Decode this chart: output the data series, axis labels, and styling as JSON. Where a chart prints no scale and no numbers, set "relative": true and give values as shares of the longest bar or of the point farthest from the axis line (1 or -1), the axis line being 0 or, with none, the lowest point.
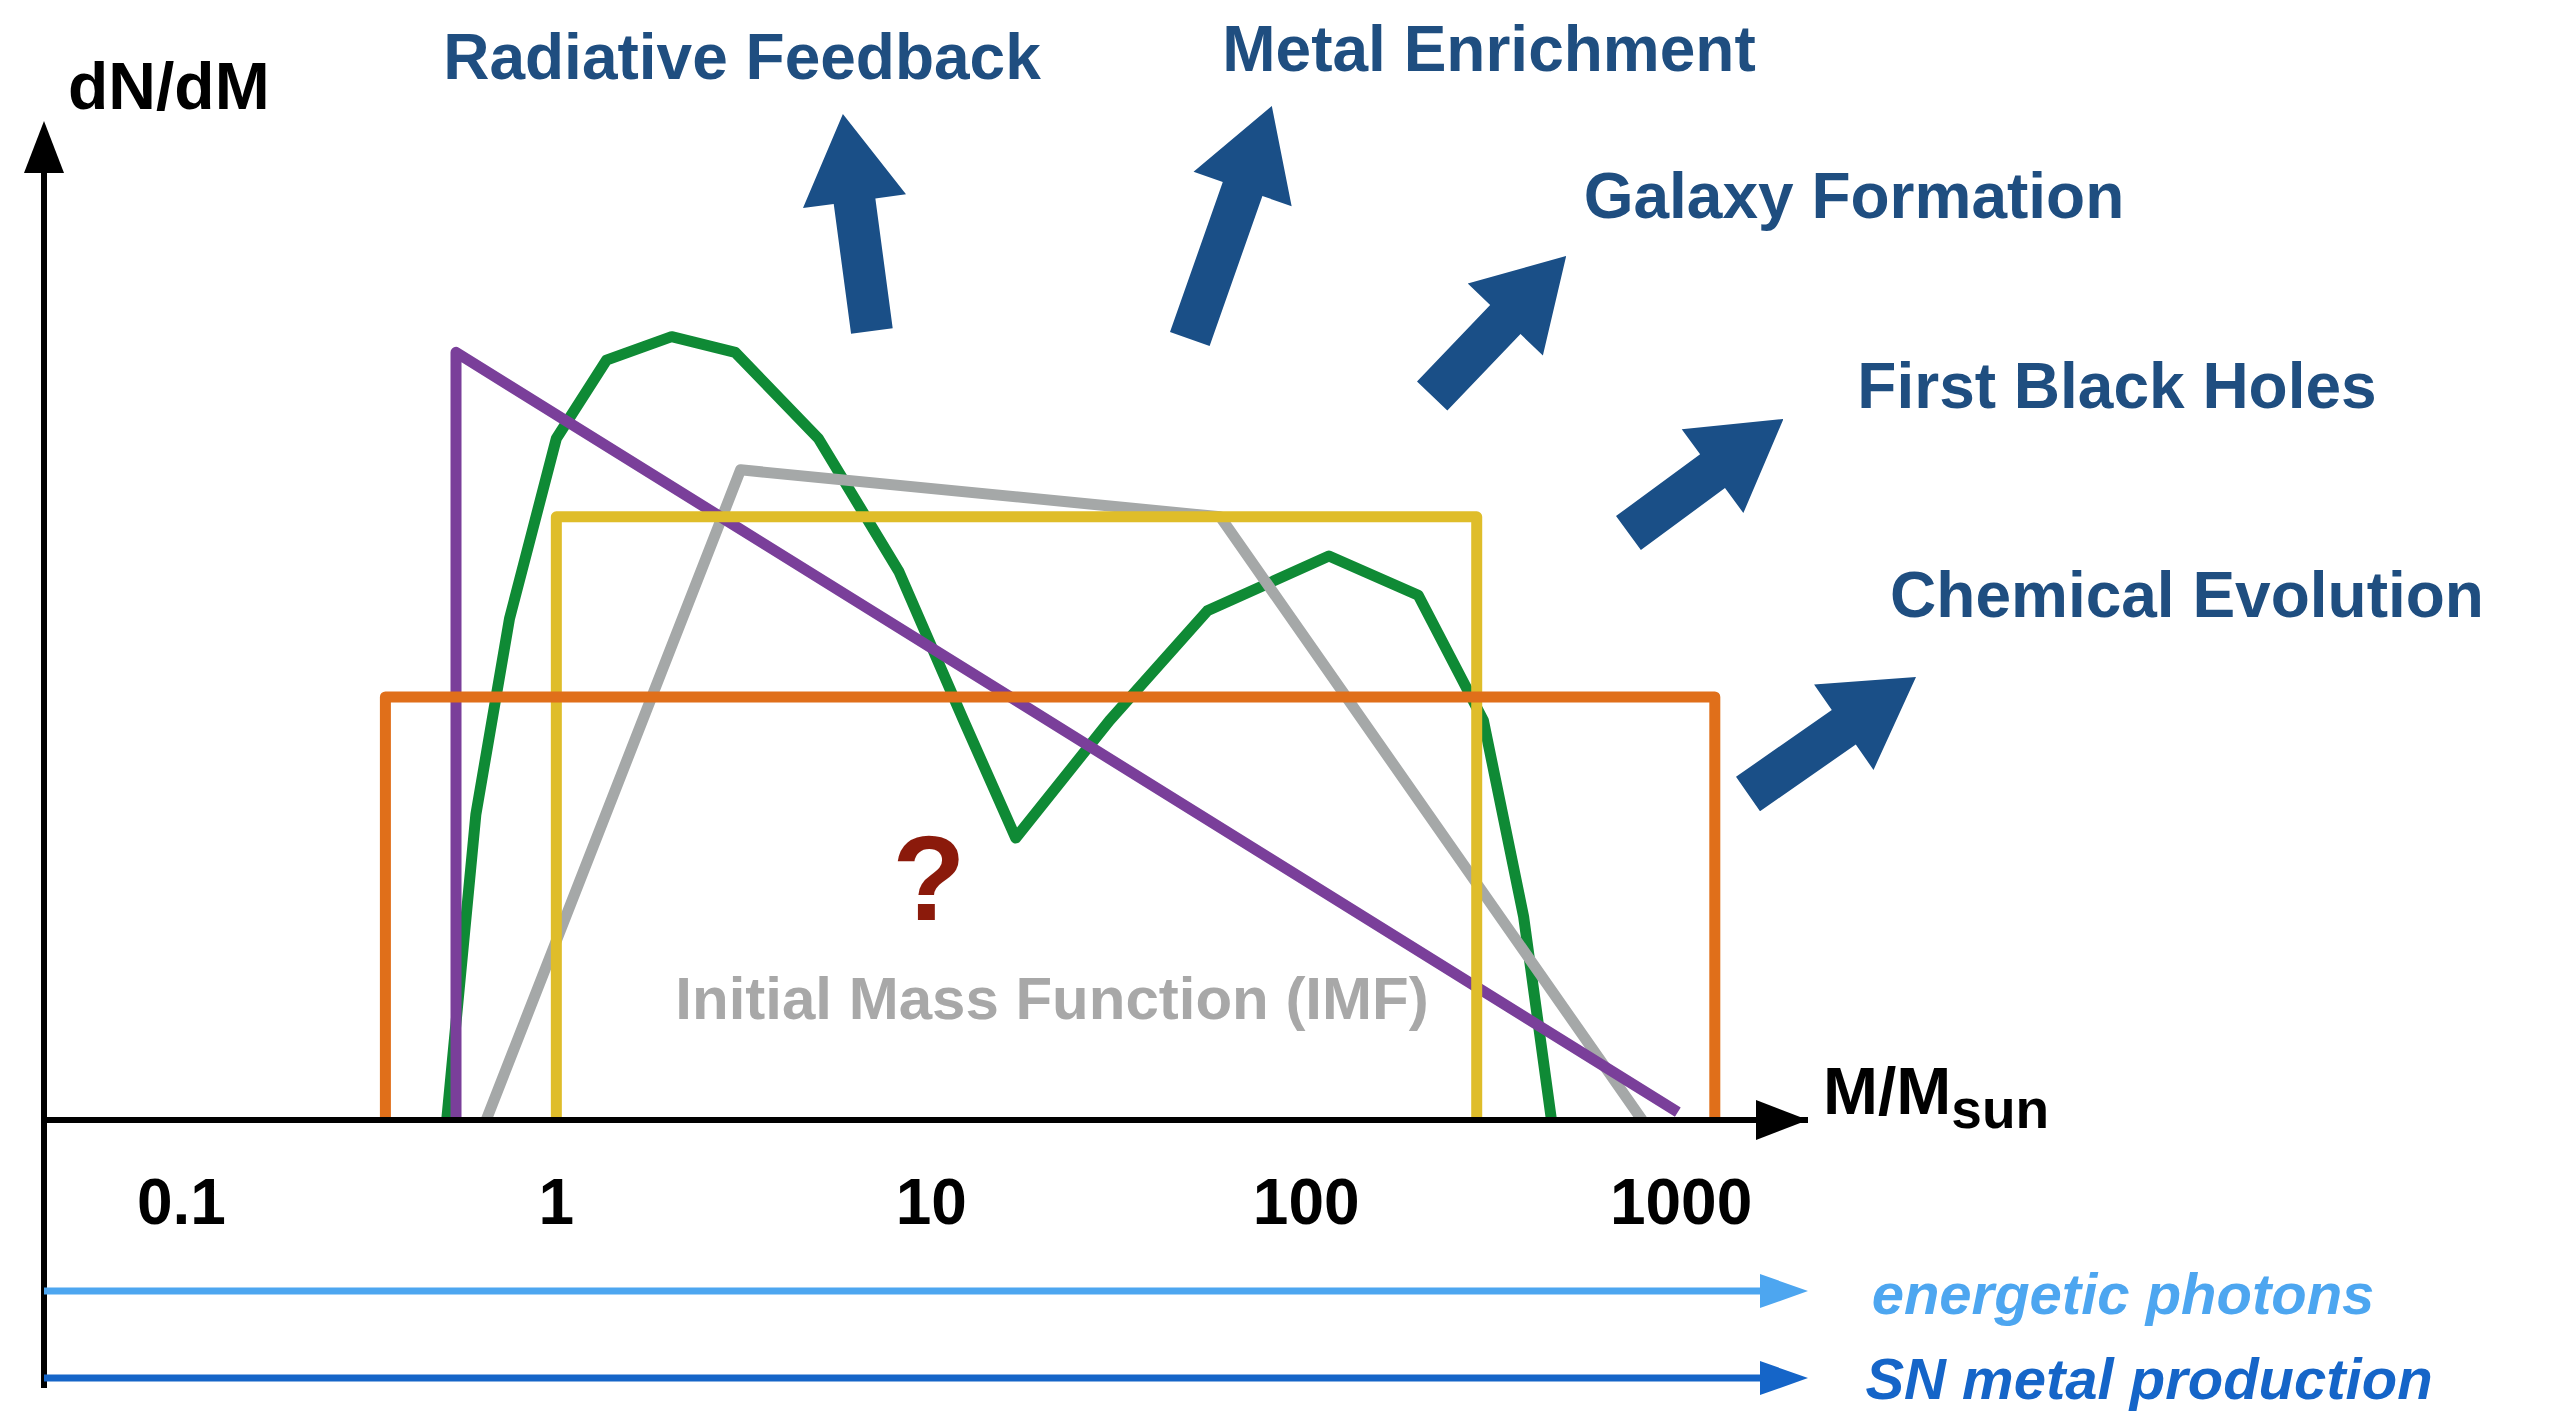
{
  "chart_data": {
    "type": "line",
    "ylabel": "dN/dM",
    "xlabel": "M/M$_{sun}$",
    "relative": true,
    "log": "x",
    "xlim": [
      0.043,
      2180
    ],
    "xticks": [
      0.1,
      1,
      10,
      100,
      1000
    ],
    "tick_labels": "x",
    "marker": "none",
    "line_style": "solid",
    "series": [
      {
        "color": "#e06f1a",
        "x": [
          0.35,
          0.35,
          1230,
          1230
        ],
        "values": [
          0,
          0.54,
          0.54,
          0
        ]
      },
      {
        "color": "#dfbd2a",
        "x": [
          1.0,
          1.0,
          285,
          285
        ],
        "values": [
          0,
          0.77,
          0.77,
          0
        ]
      },
      {
        "color": "#7a3f9a",
        "x": [
          0.54,
          0.54,
          980
        ],
        "values": [
          0,
          0.98,
          0.01
        ]
      },
      {
        "color": "#a5a8a8",
        "x": [
          0.65,
          3.1,
          59,
          787
        ],
        "values": [
          0,
          0.83,
          0.77,
          0
        ]
      },
      {
        "color": "#0f8a35",
        "x": [
          0.51,
          0.61,
          0.75,
          1.0,
          1.36,
          2.03,
          3.0,
          5.0,
          8.2,
          12.2,
          16.8,
          29.9,
          54.5,
          115,
          199,
          297,
          380,
          451
        ],
        "values": [
          0,
          0.39,
          0.64,
          0.87,
          0.97,
          1.0,
          0.98,
          0.87,
          0.7,
          0.51,
          0.36,
          0.51,
          0.65,
          0.72,
          0.67,
          0.51,
          0.26,
          0
        ]
      }
    ],
    "annotations": [
      "Radiative Feedback",
      "Metal Enrichment",
      "Galaxy Formation",
      "First Black Holes",
      "Chemical Evolution",
      "?",
      "Initial Mass Function (IMF)",
      "energetic photons",
      "SN metal production"
    ]
  }
}
